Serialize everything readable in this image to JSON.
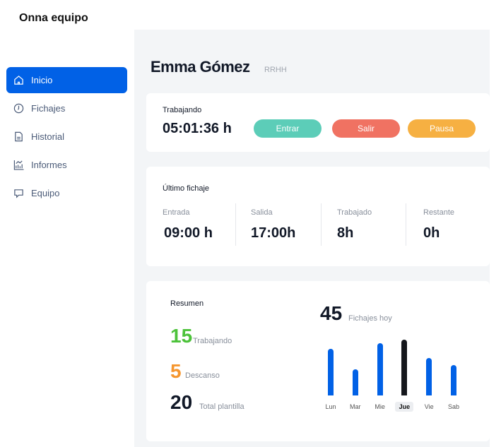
{
  "app": {
    "title": "Onna equipo"
  },
  "sidebar": {
    "items": [
      {
        "label": "Inicio",
        "icon": "home-icon",
        "active": true
      },
      {
        "label": "Fichajes",
        "icon": "clock-icon"
      },
      {
        "label": "Historial",
        "icon": "document-icon"
      },
      {
        "label": "Informes",
        "icon": "chart-icon"
      },
      {
        "label": "Equipo",
        "icon": "chat-icon"
      }
    ]
  },
  "header": {
    "name": "Emma Gómez",
    "department": "RRHH"
  },
  "status": {
    "label": "Trabajando",
    "time": "05:01:36 h",
    "buttons": [
      {
        "label": "Entrar",
        "color": "#5ccdb8"
      },
      {
        "label": "Salir",
        "color": "#f07262"
      },
      {
        "label": "Pausa",
        "color": "#f6b042"
      }
    ]
  },
  "last": {
    "title": "Último fichaje",
    "items": [
      {
        "label": "Entrada",
        "value": "09:00 h"
      },
      {
        "label": "Salida",
        "value": "17:00h"
      },
      {
        "label": "Trabajado",
        "value": "8h"
      },
      {
        "label": "Restante",
        "value": "0h"
      }
    ]
  },
  "summary": {
    "title": "Resumen",
    "stats": [
      {
        "value": "15",
        "label": "Trabajando",
        "color": "#4cc23a"
      },
      {
        "value": "5",
        "label": "Descanso",
        "color": "#f5962f"
      },
      {
        "value": "20",
        "label": "Total plantilla",
        "color": "#111827"
      }
    ]
  },
  "chart_data": {
    "type": "bar",
    "headline_value": "45",
    "headline_label": "Fichajes hoy",
    "categories": [
      "Lun",
      "Mar",
      "Mie",
      "Jue",
      "Vie",
      "Sab"
    ],
    "values": [
      66,
      37,
      74,
      79,
      53,
      43
    ],
    "highlight": "Jue",
    "bar_color": "#0161e6",
    "highlight_color": "#15171c",
    "grid": false
  }
}
